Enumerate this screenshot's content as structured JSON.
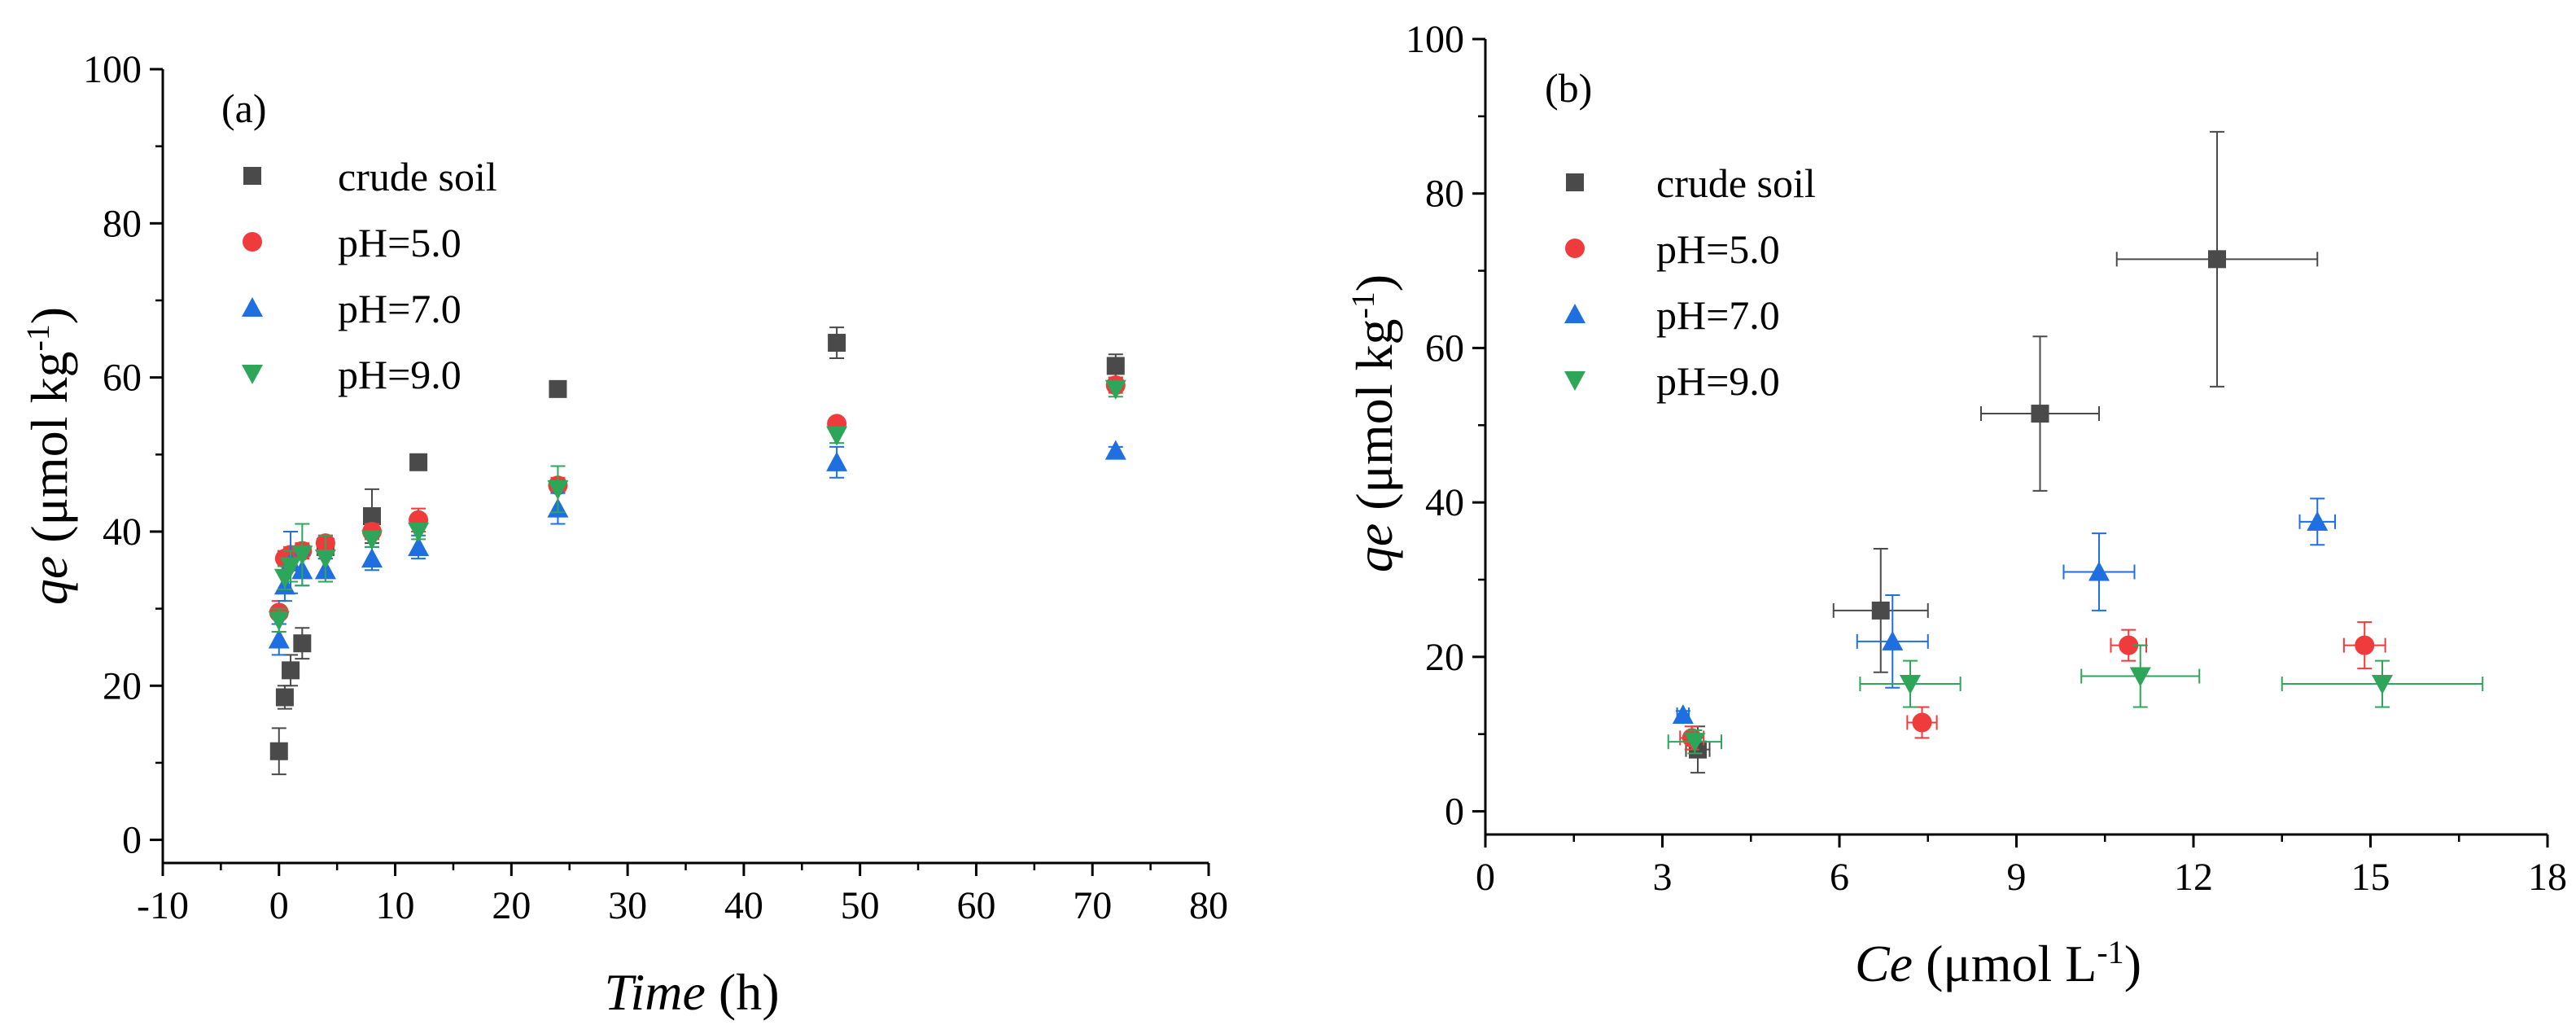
{
  "colors": {
    "crude_soil": "#4a4a4a",
    "ph5": "#ef3b3b",
    "ph7": "#1f6fe0",
    "ph9": "#2ea65a",
    "axis": "#000000"
  },
  "chart_data": [
    {
      "type": "scatter",
      "panel_label": "(a)",
      "xlabel_italic": "Time",
      "xlabel_unit": " (h)",
      "ylabel_italic": "qe",
      "ylabel_unit_pre": " (μmol kg",
      "ylabel_unit_sup": "-1",
      "ylabel_unit_post": ")",
      "xlim": [
        -10,
        80
      ],
      "ylim": [
        -3,
        100
      ],
      "xticks": [
        -10,
        0,
        10,
        20,
        30,
        40,
        50,
        60,
        70,
        80
      ],
      "yticks": [
        0,
        20,
        40,
        60,
        80,
        100
      ],
      "legend_position": "top-left",
      "series": [
        {
          "name": "crude soil",
          "marker": "square",
          "color_key": "crude_soil",
          "points": [
            {
              "x": 0,
              "y": 11.5,
              "yerr": 3
            },
            {
              "x": 0.5,
              "y": 18.5,
              "yerr": 1.5
            },
            {
              "x": 1,
              "y": 22,
              "yerr": 2
            },
            {
              "x": 2,
              "y": 25.5,
              "yerr": 2
            },
            {
              "x": 4,
              "y": 38,
              "yerr": 1.5
            },
            {
              "x": 8,
              "y": 42,
              "yerr": 3.5
            },
            {
              "x": 12,
              "y": 49,
              "yerr": 1
            },
            {
              "x": 24,
              "y": 58.5,
              "yerr": 0.5
            },
            {
              "x": 48,
              "y": 64.5,
              "yerr": 2
            },
            {
              "x": 72,
              "y": 61.5,
              "yerr": 1.5
            }
          ]
        },
        {
          "name": "pH=5.0",
          "marker": "circle",
          "color_key": "ph5",
          "points": [
            {
              "x": 0,
              "y": 29.5,
              "yerr": 1.5
            },
            {
              "x": 0.5,
              "y": 36.5,
              "yerr": 1
            },
            {
              "x": 1,
              "y": 37,
              "yerr": 1
            },
            {
              "x": 2,
              "y": 37.5,
              "yerr": 1
            },
            {
              "x": 4,
              "y": 38.5,
              "yerr": 1
            },
            {
              "x": 8,
              "y": 40,
              "yerr": 1
            },
            {
              "x": 12,
              "y": 41.5,
              "yerr": 1.5
            },
            {
              "x": 24,
              "y": 46,
              "yerr": 1
            },
            {
              "x": 48,
              "y": 54,
              "yerr": 0.5
            },
            {
              "x": 72,
              "y": 59,
              "yerr": 1
            }
          ]
        },
        {
          "name": "pH=7.0",
          "marker": "triangle-up",
          "color_key": "ph7",
          "points": [
            {
              "x": 0,
              "y": 26,
              "yerr": 2
            },
            {
              "x": 0.5,
              "y": 33,
              "yerr": 2
            },
            {
              "x": 1,
              "y": 36,
              "yerr": 4
            },
            {
              "x": 2,
              "y": 35,
              "yerr": 2
            },
            {
              "x": 4,
              "y": 35,
              "yerr": 1.5
            },
            {
              "x": 8,
              "y": 36.5,
              "yerr": 1.5
            },
            {
              "x": 12,
              "y": 38,
              "yerr": 1.5
            },
            {
              "x": 24,
              "y": 43,
              "yerr": 2
            },
            {
              "x": 48,
              "y": 49,
              "yerr": 2
            },
            {
              "x": 72,
              "y": 50.5,
              "yerr": 0.5
            }
          ]
        },
        {
          "name": "pH=9.0",
          "marker": "triangle-down",
          "color_key": "ph9",
          "points": [
            {
              "x": 0,
              "y": 28.5,
              "yerr": 1.5
            },
            {
              "x": 0.5,
              "y": 34,
              "yerr": 1.5
            },
            {
              "x": 1,
              "y": 35.5,
              "yerr": 2
            },
            {
              "x": 2,
              "y": 37,
              "yerr": 4
            },
            {
              "x": 4,
              "y": 36.5,
              "yerr": 3
            },
            {
              "x": 8,
              "y": 39,
              "yerr": 1
            },
            {
              "x": 12,
              "y": 40,
              "yerr": 1
            },
            {
              "x": 24,
              "y": 45.5,
              "yerr": 3
            },
            {
              "x": 48,
              "y": 52.5,
              "yerr": 1
            },
            {
              "x": 72,
              "y": 58.5,
              "yerr": 1
            }
          ]
        }
      ]
    },
    {
      "type": "scatter",
      "panel_label": "(b)",
      "xlabel_italic": "Ce",
      "xlabel_unit_pre": " (μmol L",
      "xlabel_unit_sup": "-1",
      "xlabel_unit_post": ")",
      "ylabel_italic": "qe",
      "ylabel_unit_pre": " (μmol kg",
      "ylabel_unit_sup": "-1",
      "ylabel_unit_post": ")",
      "xlim": [
        0,
        18
      ],
      "ylim": [
        -3,
        100
      ],
      "xticks": [
        0,
        3,
        6,
        9,
        12,
        15,
        18
      ],
      "yticks": [
        0,
        20,
        40,
        60,
        80,
        100
      ],
      "legend_position": "top-left",
      "series": [
        {
          "name": "crude soil",
          "marker": "square",
          "color_key": "crude_soil",
          "points": [
            {
              "x": 3.6,
              "y": 8,
              "xerr": 0.2,
              "yerr": 3
            },
            {
              "x": 6.7,
              "y": 26,
              "xerr": 0.8,
              "yerr": 8
            },
            {
              "x": 9.4,
              "y": 51.5,
              "xerr": 1.0,
              "yerr": 10
            },
            {
              "x": 12.4,
              "y": 71.5,
              "xerr": 1.7,
              "yerr": 16.5
            }
          ]
        },
        {
          "name": "pH=5.0",
          "marker": "circle",
          "color_key": "ph5",
          "points": [
            {
              "x": 3.5,
              "y": 9.5,
              "xerr": 0.2,
              "yerr": 1.5
            },
            {
              "x": 7.4,
              "y": 11.5,
              "xerr": 0.25,
              "yerr": 2
            },
            {
              "x": 10.9,
              "y": 21.5,
              "xerr": 0.3,
              "yerr": 2
            },
            {
              "x": 14.9,
              "y": 21.5,
              "xerr": 0.35,
              "yerr": 3
            }
          ]
        },
        {
          "name": "pH=7.0",
          "marker": "triangle-up",
          "color_key": "ph7",
          "points": [
            {
              "x": 3.35,
              "y": 12.5,
              "xerr": 0.1,
              "yerr": 0.5
            },
            {
              "x": 6.9,
              "y": 22,
              "xerr": 0.6,
              "yerr": 6
            },
            {
              "x": 10.4,
              "y": 31,
              "xerr": 0.6,
              "yerr": 5
            },
            {
              "x": 14.1,
              "y": 37.5,
              "xerr": 0.3,
              "yerr": 3
            }
          ]
        },
        {
          "name": "pH=9.0",
          "marker": "triangle-down",
          "color_key": "ph9",
          "points": [
            {
              "x": 3.55,
              "y": 9,
              "xerr": 0.45,
              "yerr": 1.5
            },
            {
              "x": 7.2,
              "y": 16.5,
              "xerr": 0.85,
              "yerr": 3
            },
            {
              "x": 11.1,
              "y": 17.5,
              "xerr": 1.0,
              "yerr": 4
            },
            {
              "x": 15.2,
              "y": 16.5,
              "xerr": 1.7,
              "yerr": 3
            }
          ]
        }
      ]
    }
  ]
}
